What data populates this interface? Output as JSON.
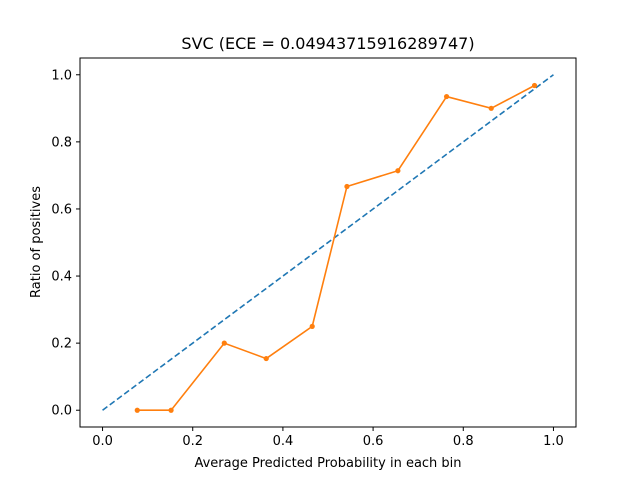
{
  "chart_data": {
    "type": "line",
    "title": "SVC (ECE = 0.04943715916289747)",
    "xlabel": "Average Predicted Probability in each bin",
    "ylabel": "Ratio of positives",
    "xlim": [
      -0.05,
      1.05
    ],
    "ylim": [
      -0.05,
      1.05
    ],
    "xticks": [
      0.0,
      0.2,
      0.4,
      0.6,
      0.8,
      1.0
    ],
    "yticks": [
      0.0,
      0.2,
      0.4,
      0.6,
      0.8,
      1.0
    ],
    "xtick_labels": [
      "0.0",
      "0.2",
      "0.4",
      "0.6",
      "0.8",
      "1.0"
    ],
    "ytick_labels": [
      "0.0",
      "0.2",
      "0.4",
      "0.6",
      "0.8",
      "1.0"
    ],
    "grid": false,
    "series": [
      {
        "style": "dashed",
        "color": "#1f77b4",
        "x": [
          0.0,
          1.0
        ],
        "y": [
          0.0,
          1.0
        ]
      },
      {
        "style": "solid-with-markers",
        "color": "#ff7f0e",
        "x": [
          0.077,
          0.152,
          0.27,
          0.363,
          0.465,
          0.542,
          0.655,
          0.763,
          0.862,
          0.958
        ],
        "y": [
          0.0,
          0.0,
          0.2,
          0.154,
          0.25,
          0.667,
          0.714,
          0.935,
          0.9,
          0.968
        ]
      }
    ]
  }
}
